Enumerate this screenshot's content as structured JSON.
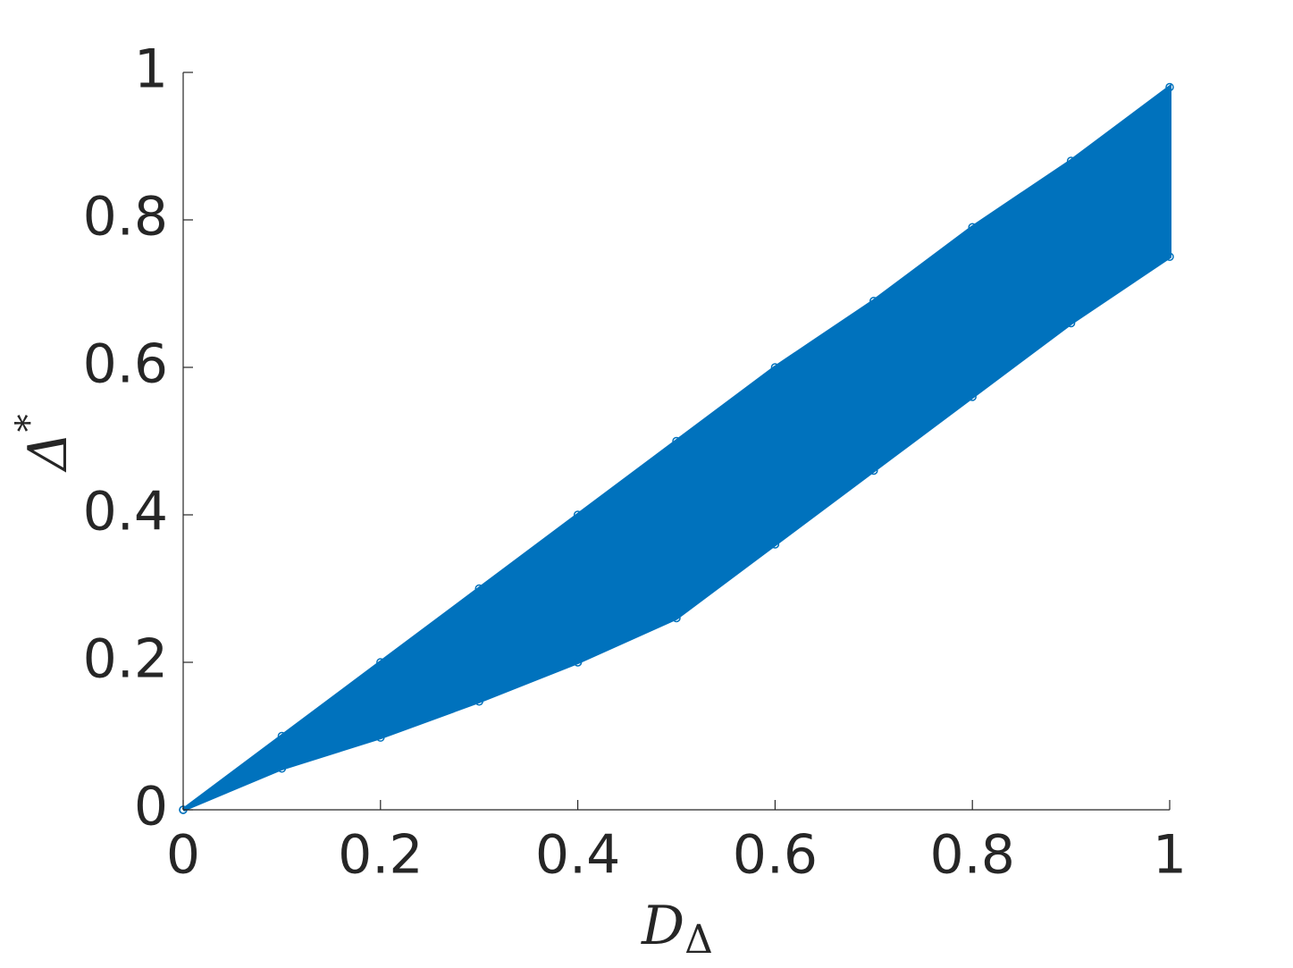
{
  "chart_data": {
    "type": "band",
    "x": [
      0,
      0.1,
      0.2,
      0.3,
      0.4,
      0.5,
      0.6,
      0.7,
      0.8,
      0.9,
      1
    ],
    "series": [
      {
        "color": "#0072bd",
        "values": [
          0,
          0.1,
          0.2,
          0.3,
          0.4,
          0.5,
          0.6,
          0.69,
          0.79,
          0.88,
          0.98
        ]
      },
      {
        "color": "#0072bd",
        "values": [
          0,
          0.056,
          0.098,
          0.147,
          0.2,
          0.26,
          0.36,
          0.46,
          0.56,
          0.66,
          0.75
        ]
      }
    ],
    "xlabel": {
      "text": "D",
      "subscript": "Δ"
    },
    "ylabel": {
      "text": "Δ",
      "superscript": "*"
    },
    "xlim": [
      0,
      1
    ],
    "ylim": [
      0,
      1
    ],
    "xticks": [
      0,
      0.2,
      0.4,
      0.6,
      0.8,
      1
    ],
    "yticks": [
      0,
      0.2,
      0.4,
      0.6,
      0.8,
      1
    ]
  }
}
